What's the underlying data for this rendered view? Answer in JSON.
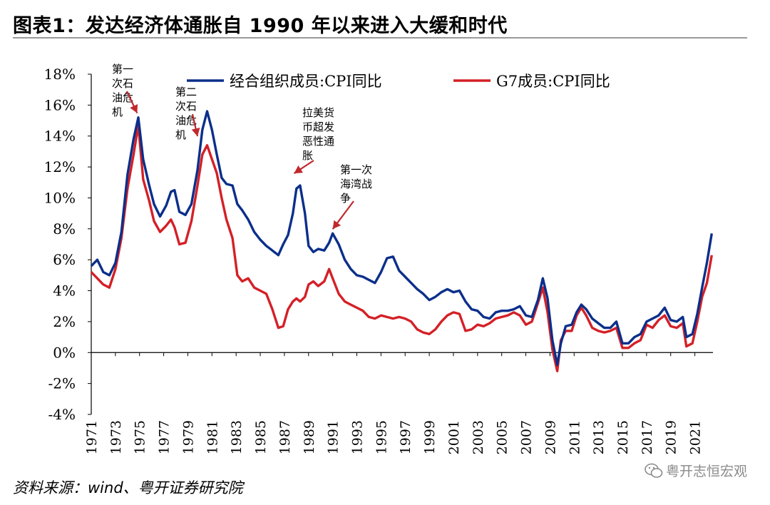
{
  "header": {
    "title": "图表1：发达经济体通胀自 1990 年以来进入大缓和时代"
  },
  "footer": {
    "source": "资料来源：wind、粤开证券研究院",
    "watermark": "粤开志恒宏观",
    "watermark_icon": "wechat-icon"
  },
  "chart_data": {
    "type": "line",
    "title": "",
    "xlabel": "",
    "ylabel": "",
    "ylim": [
      -4,
      18
    ],
    "xlim": [
      1971,
      2022.5
    ],
    "y_ticks": [
      "-4%",
      "-2%",
      "0%",
      "2%",
      "4%",
      "6%",
      "8%",
      "10%",
      "12%",
      "14%",
      "16%",
      "18%"
    ],
    "y_tick_values": [
      -4,
      -2,
      0,
      2,
      4,
      6,
      8,
      10,
      12,
      14,
      16,
      18
    ],
    "x_ticks": [
      "1971",
      "1973",
      "1975",
      "1977",
      "1979",
      "1981",
      "1983",
      "1985",
      "1987",
      "1989",
      "1991",
      "1993",
      "1995",
      "1997",
      "1999",
      "2001",
      "2003",
      "2005",
      "2007",
      "2009",
      "2011",
      "2013",
      "2015",
      "2017",
      "2019",
      "2021"
    ],
    "grid": false,
    "legend_position": "top",
    "series": [
      {
        "name": "经合组织成员:CPI同比",
        "color": "#0b2f8a",
        "points": [
          [
            1971.0,
            5.6
          ],
          [
            1971.5,
            6.0
          ],
          [
            1972.0,
            5.2
          ],
          [
            1972.5,
            5.0
          ],
          [
            1973.0,
            5.8
          ],
          [
            1973.5,
            7.8
          ],
          [
            1974.0,
            11.5
          ],
          [
            1974.5,
            13.8
          ],
          [
            1974.9,
            15.2
          ],
          [
            1975.3,
            12.5
          ],
          [
            1975.8,
            10.8
          ],
          [
            1976.2,
            9.6
          ],
          [
            1976.7,
            8.8
          ],
          [
            1977.2,
            9.5
          ],
          [
            1977.6,
            10.4
          ],
          [
            1977.9,
            10.5
          ],
          [
            1978.3,
            9.1
          ],
          [
            1978.8,
            8.9
          ],
          [
            1979.3,
            9.6
          ],
          [
            1979.8,
            11.8
          ],
          [
            1980.2,
            14.4
          ],
          [
            1980.6,
            15.6
          ],
          [
            1981.0,
            14.4
          ],
          [
            1981.4,
            12.8
          ],
          [
            1981.8,
            11.3
          ],
          [
            1982.2,
            10.9
          ],
          [
            1982.7,
            10.8
          ],
          [
            1983.1,
            9.6
          ],
          [
            1983.5,
            9.2
          ],
          [
            1984.0,
            8.6
          ],
          [
            1984.5,
            7.8
          ],
          [
            1985.0,
            7.3
          ],
          [
            1985.5,
            6.9
          ],
          [
            1986.0,
            6.6
          ],
          [
            1986.5,
            6.3
          ],
          [
            1986.9,
            7.0
          ],
          [
            1987.3,
            7.6
          ],
          [
            1987.7,
            9.0
          ],
          [
            1988.0,
            10.6
          ],
          [
            1988.3,
            10.8
          ],
          [
            1988.7,
            9.0
          ],
          [
            1989.0,
            6.9
          ],
          [
            1989.4,
            6.5
          ],
          [
            1989.8,
            6.7
          ],
          [
            1990.3,
            6.6
          ],
          [
            1990.7,
            7.1
          ],
          [
            1991.0,
            7.7
          ],
          [
            1991.5,
            7.0
          ],
          [
            1992.0,
            6.0
          ],
          [
            1992.5,
            5.4
          ],
          [
            1993.0,
            5.0
          ],
          [
            1993.5,
            4.9
          ],
          [
            1994.0,
            4.7
          ],
          [
            1994.5,
            4.5
          ],
          [
            1995.0,
            5.2
          ],
          [
            1995.5,
            6.1
          ],
          [
            1996.0,
            6.2
          ],
          [
            1996.5,
            5.3
          ],
          [
            1997.0,
            4.9
          ],
          [
            1997.5,
            4.5
          ],
          [
            1998.0,
            4.1
          ],
          [
            1998.5,
            3.8
          ],
          [
            1999.0,
            3.4
          ],
          [
            1999.5,
            3.6
          ],
          [
            2000.0,
            3.9
          ],
          [
            2000.5,
            4.1
          ],
          [
            2001.0,
            3.9
          ],
          [
            2001.5,
            4.0
          ],
          [
            2002.0,
            3.3
          ],
          [
            2002.5,
            2.8
          ],
          [
            2003.0,
            2.7
          ],
          [
            2003.5,
            2.3
          ],
          [
            2004.0,
            2.2
          ],
          [
            2004.5,
            2.6
          ],
          [
            2005.0,
            2.7
          ],
          [
            2005.5,
            2.7
          ],
          [
            2006.0,
            2.8
          ],
          [
            2006.5,
            3.0
          ],
          [
            2007.0,
            2.4
          ],
          [
            2007.5,
            2.3
          ],
          [
            2008.0,
            3.4
          ],
          [
            2008.4,
            4.8
          ],
          [
            2008.8,
            3.5
          ],
          [
            2009.2,
            0.8
          ],
          [
            2009.6,
            -0.8
          ],
          [
            2009.9,
            0.6
          ],
          [
            2010.3,
            1.7
          ],
          [
            2010.8,
            1.8
          ],
          [
            2011.2,
            2.6
          ],
          [
            2011.6,
            3.1
          ],
          [
            2012.0,
            2.8
          ],
          [
            2012.5,
            2.2
          ],
          [
            2013.0,
            1.9
          ],
          [
            2013.5,
            1.6
          ],
          [
            2014.0,
            1.6
          ],
          [
            2014.5,
            2.0
          ],
          [
            2015.0,
            0.6
          ],
          [
            2015.5,
            0.6
          ],
          [
            2016.0,
            1.0
          ],
          [
            2016.5,
            1.2
          ],
          [
            2017.0,
            2.0
          ],
          [
            2017.5,
            2.2
          ],
          [
            2018.0,
            2.4
          ],
          [
            2018.5,
            2.9
          ],
          [
            2019.0,
            2.1
          ],
          [
            2019.5,
            2.0
          ],
          [
            2020.0,
            2.3
          ],
          [
            2020.3,
            1.0
          ],
          [
            2020.8,
            1.2
          ],
          [
            2021.2,
            2.5
          ],
          [
            2021.6,
            4.2
          ],
          [
            2022.0,
            5.8
          ],
          [
            2022.4,
            7.7
          ]
        ]
      },
      {
        "name": "G7成员:CPI同比",
        "color": "#d42027",
        "points": [
          [
            1971.0,
            5.2
          ],
          [
            1971.5,
            4.8
          ],
          [
            1972.0,
            4.4
          ],
          [
            1972.5,
            4.2
          ],
          [
            1973.0,
            5.4
          ],
          [
            1973.5,
            7.4
          ],
          [
            1974.0,
            10.6
          ],
          [
            1974.5,
            12.8
          ],
          [
            1974.9,
            14.7
          ],
          [
            1975.3,
            11.2
          ],
          [
            1975.8,
            9.8
          ],
          [
            1976.2,
            8.5
          ],
          [
            1976.7,
            7.8
          ],
          [
            1977.2,
            8.2
          ],
          [
            1977.6,
            8.6
          ],
          [
            1977.9,
            8.1
          ],
          [
            1978.3,
            7.0
          ],
          [
            1978.8,
            7.1
          ],
          [
            1979.3,
            8.5
          ],
          [
            1979.8,
            10.8
          ],
          [
            1980.2,
            12.8
          ],
          [
            1980.6,
            13.4
          ],
          [
            1981.0,
            12.5
          ],
          [
            1981.4,
            11.6
          ],
          [
            1981.8,
            10.0
          ],
          [
            1982.2,
            8.6
          ],
          [
            1982.7,
            7.4
          ],
          [
            1983.1,
            5.0
          ],
          [
            1983.5,
            4.6
          ],
          [
            1984.0,
            4.8
          ],
          [
            1984.5,
            4.2
          ],
          [
            1985.0,
            4.0
          ],
          [
            1985.5,
            3.8
          ],
          [
            1986.0,
            2.8
          ],
          [
            1986.5,
            1.6
          ],
          [
            1986.9,
            1.7
          ],
          [
            1987.3,
            2.8
          ],
          [
            1987.7,
            3.3
          ],
          [
            1988.0,
            3.5
          ],
          [
            1988.3,
            3.3
          ],
          [
            1988.7,
            3.6
          ],
          [
            1989.0,
            4.4
          ],
          [
            1989.4,
            4.6
          ],
          [
            1989.8,
            4.3
          ],
          [
            1990.3,
            4.6
          ],
          [
            1990.7,
            5.4
          ],
          [
            1991.0,
            4.8
          ],
          [
            1991.5,
            3.8
          ],
          [
            1992.0,
            3.3
          ],
          [
            1992.5,
            3.1
          ],
          [
            1993.0,
            2.9
          ],
          [
            1993.5,
            2.7
          ],
          [
            1994.0,
            2.3
          ],
          [
            1994.5,
            2.2
          ],
          [
            1995.0,
            2.4
          ],
          [
            1995.5,
            2.3
          ],
          [
            1996.0,
            2.2
          ],
          [
            1996.5,
            2.3
          ],
          [
            1997.0,
            2.2
          ],
          [
            1997.5,
            2.0
          ],
          [
            1998.0,
            1.5
          ],
          [
            1998.5,
            1.3
          ],
          [
            1999.0,
            1.2
          ],
          [
            1999.5,
            1.5
          ],
          [
            2000.0,
            2.0
          ],
          [
            2000.5,
            2.4
          ],
          [
            2001.0,
            2.6
          ],
          [
            2001.5,
            2.5
          ],
          [
            2002.0,
            1.4
          ],
          [
            2002.5,
            1.5
          ],
          [
            2003.0,
            1.8
          ],
          [
            2003.5,
            1.7
          ],
          [
            2004.0,
            1.9
          ],
          [
            2004.5,
            2.2
          ],
          [
            2005.0,
            2.3
          ],
          [
            2005.5,
            2.4
          ],
          [
            2006.0,
            2.6
          ],
          [
            2006.5,
            2.4
          ],
          [
            2007.0,
            1.8
          ],
          [
            2007.5,
            2.0
          ],
          [
            2008.0,
            3.2
          ],
          [
            2008.4,
            4.2
          ],
          [
            2008.8,
            2.6
          ],
          [
            2009.2,
            0.2
          ],
          [
            2009.6,
            -1.2
          ],
          [
            2009.9,
            0.8
          ],
          [
            2010.3,
            1.4
          ],
          [
            2010.8,
            1.4
          ],
          [
            2011.2,
            2.4
          ],
          [
            2011.6,
            2.9
          ],
          [
            2012.0,
            2.4
          ],
          [
            2012.5,
            1.6
          ],
          [
            2013.0,
            1.4
          ],
          [
            2013.5,
            1.3
          ],
          [
            2014.0,
            1.4
          ],
          [
            2014.5,
            1.6
          ],
          [
            2015.0,
            0.3
          ],
          [
            2015.5,
            0.3
          ],
          [
            2016.0,
            0.6
          ],
          [
            2016.5,
            0.8
          ],
          [
            2017.0,
            1.8
          ],
          [
            2017.5,
            1.6
          ],
          [
            2018.0,
            2.1
          ],
          [
            2018.5,
            2.4
          ],
          [
            2019.0,
            1.7
          ],
          [
            2019.5,
            1.6
          ],
          [
            2020.0,
            1.9
          ],
          [
            2020.3,
            0.4
          ],
          [
            2020.8,
            0.6
          ],
          [
            2021.2,
            2.0
          ],
          [
            2021.6,
            3.6
          ],
          [
            2022.0,
            4.5
          ],
          [
            2022.4,
            6.3
          ]
        ]
      }
    ],
    "annotations": [
      {
        "id": "oil1",
        "text": [
          "第一",
          "次石",
          "油危",
          "机"
        ],
        "target": [
          1974.8,
          15.3
        ]
      },
      {
        "id": "oil2",
        "text": [
          "第二",
          "次石",
          "油危",
          "机"
        ],
        "target": [
          1979.8,
          13.8
        ]
      },
      {
        "id": "latam",
        "text": [
          "拉美货",
          "币超发",
          "恶性通",
          "胀"
        ],
        "target": [
          1987.8,
          11.4
        ]
      },
      {
        "id": "gulf",
        "text": [
          "第一次",
          "海湾战",
          "争"
        ],
        "target": [
          1991.0,
          7.8
        ]
      }
    ]
  }
}
